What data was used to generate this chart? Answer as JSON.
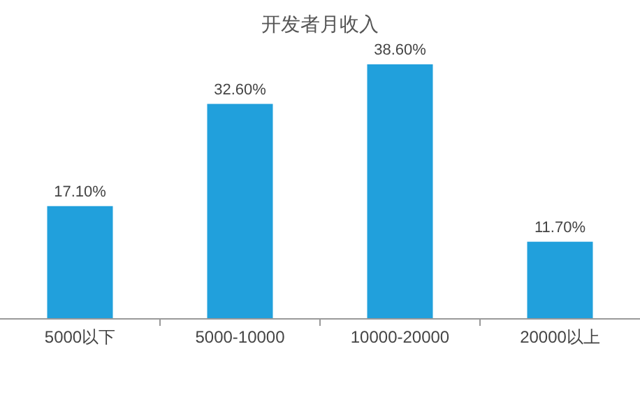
{
  "chart_data": {
    "type": "bar",
    "title": "开发者月收入",
    "categories": [
      "5000以下",
      "5000-10000",
      "10000-20000",
      "20000以上"
    ],
    "values": [
      17.1,
      32.6,
      38.6,
      11.7
    ],
    "value_labels": [
      "17.10%",
      "32.60%",
      "38.60%",
      "11.70%"
    ],
    "color": "#21a0dc"
  }
}
